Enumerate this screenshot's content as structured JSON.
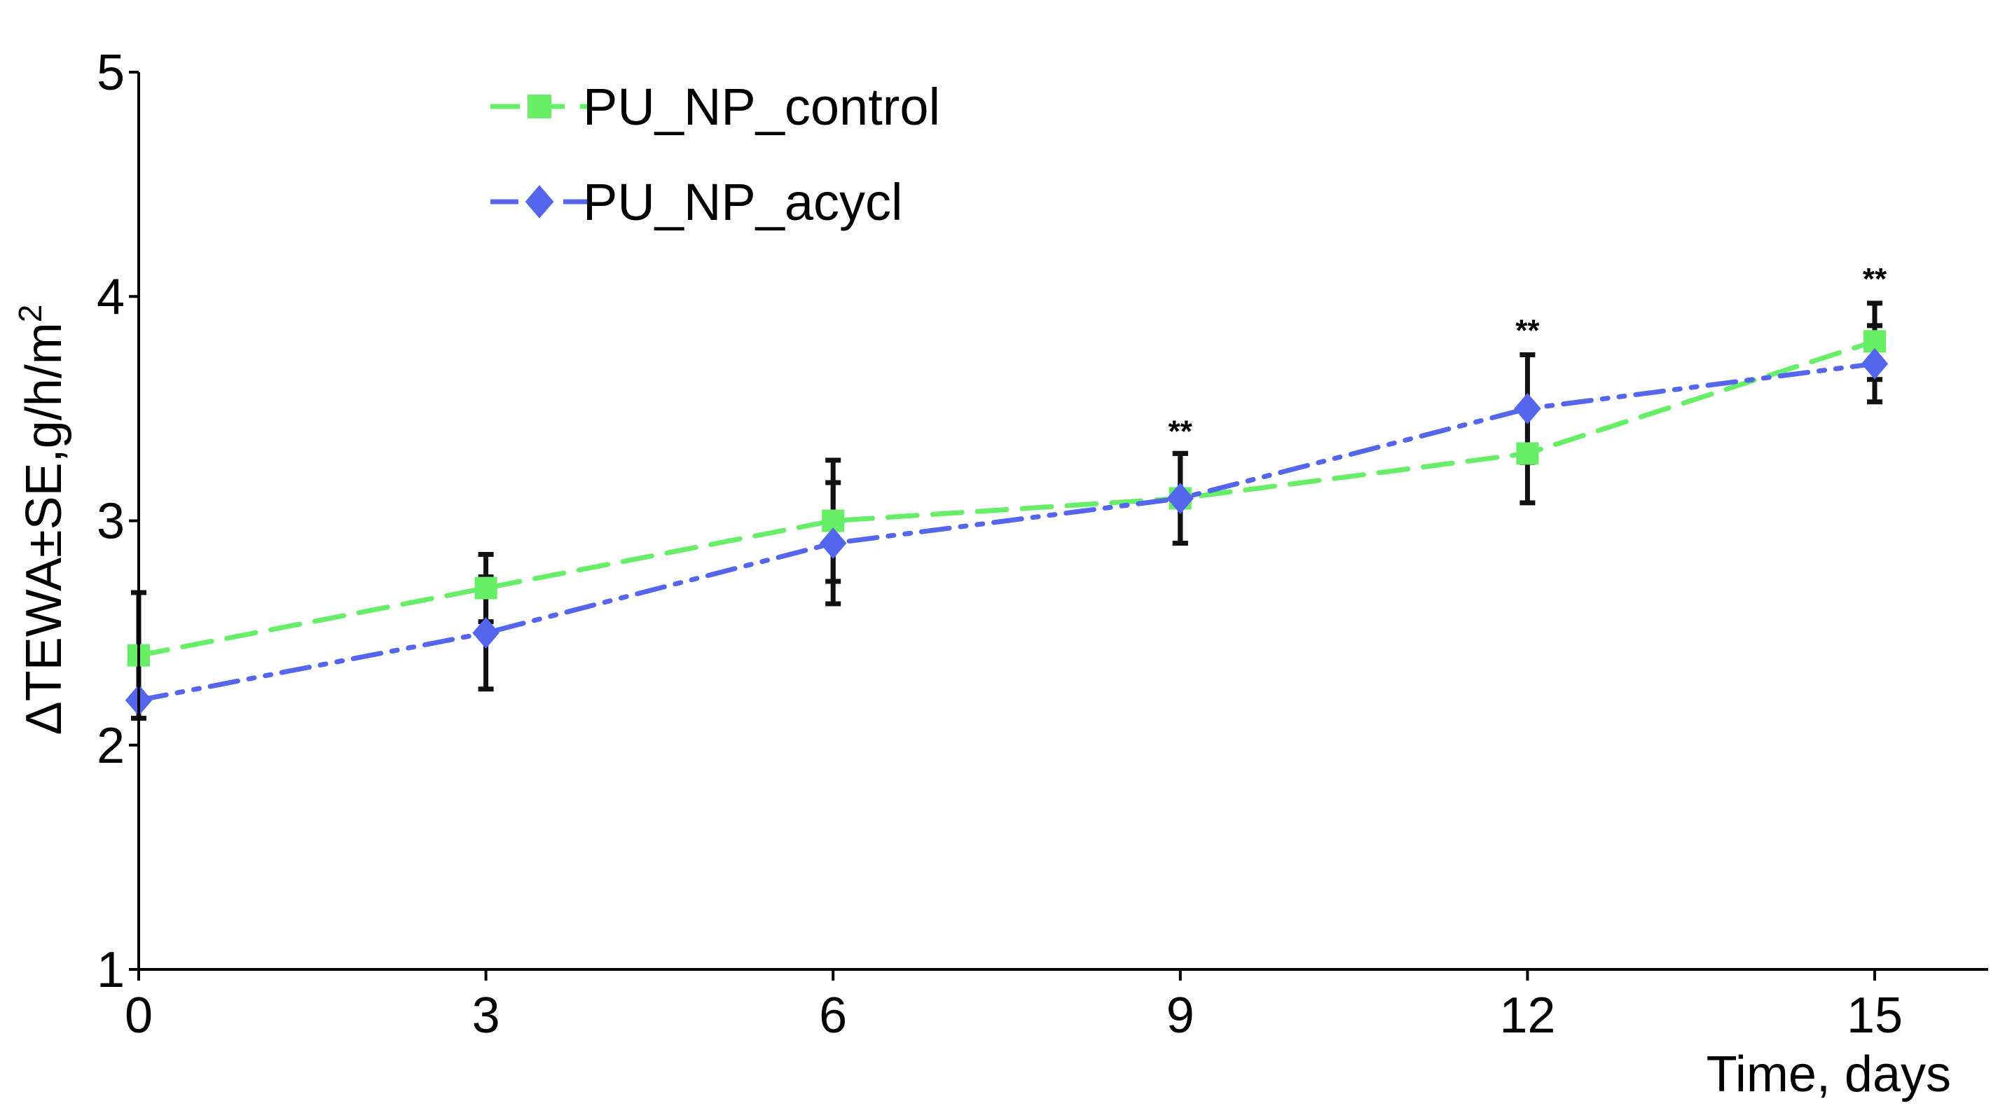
{
  "chart_data": {
    "type": "line",
    "title": "",
    "xlabel": "Time, days",
    "ylabel_main": "ΔTEWA±SE,g/h/m",
    "ylabel_sup": "2",
    "xlim": [
      0,
      16
    ],
    "ylim": [
      1,
      5
    ],
    "x_ticks": [
      0,
      3,
      6,
      9,
      12,
      15
    ],
    "x_tick_labels": [
      "0",
      "3",
      "6",
      "9",
      "12",
      "15"
    ],
    "y_ticks": [
      1,
      2,
      3,
      4,
      5
    ],
    "y_tick_labels": [
      "1",
      "2",
      "3",
      "4",
      "5"
    ],
    "grid": false,
    "legend_position": "top-left",
    "x": [
      0,
      3,
      6,
      9,
      12,
      15
    ],
    "series": [
      {
        "name": "PU_NP_control",
        "color": "#66ee66",
        "marker": "square",
        "line_style": "dashed",
        "values": [
          2.4,
          2.7,
          3.0,
          3.1,
          3.3,
          3.8
        ],
        "err": [
          0.28,
          0.15,
          0.27,
          0.2,
          0.22,
          0.17
        ]
      },
      {
        "name": "PU_NP_acycl",
        "color": "#5566ee",
        "marker": "diamond",
        "line_style": "dash-dot-dot",
        "values": [
          2.2,
          2.5,
          2.9,
          3.1,
          3.5,
          3.7
        ],
        "err": [
          0.0,
          0.25,
          0.27,
          0.2,
          0.24,
          0.17
        ]
      }
    ],
    "annotations": [
      {
        "x": 9,
        "y": 3.29,
        "text": "**"
      },
      {
        "x": 12,
        "y": 3.74,
        "text": "**"
      },
      {
        "x": 15,
        "y": 3.97,
        "text": "**"
      }
    ]
  }
}
